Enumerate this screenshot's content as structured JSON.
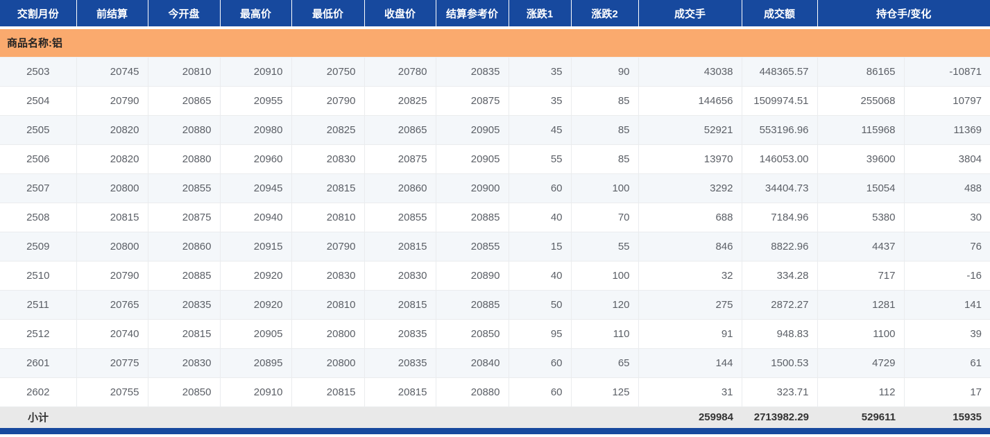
{
  "table": {
    "columns": [
      {
        "key": "delivery-month",
        "label": "交割月份",
        "span": 1
      },
      {
        "key": "prev-settlement",
        "label": "前结算",
        "span": 1
      },
      {
        "key": "open",
        "label": "今开盘",
        "span": 1
      },
      {
        "key": "high",
        "label": "最高价",
        "span": 1
      },
      {
        "key": "low",
        "label": "最低价",
        "span": 1
      },
      {
        "key": "close",
        "label": "收盘价",
        "span": 1
      },
      {
        "key": "settlement-reference",
        "label": "结算参考价",
        "span": 1
      },
      {
        "key": "change1",
        "label": "涨跌1",
        "span": 1
      },
      {
        "key": "change2",
        "label": "涨跌2",
        "span": 1
      },
      {
        "key": "volume",
        "label": "成交手",
        "span": 1
      },
      {
        "key": "turnover",
        "label": "成交额",
        "span": 1
      },
      {
        "key": "open-interest-change",
        "label": "持仓手/变化",
        "span": 2
      }
    ],
    "cell_keys": [
      "delivery-month",
      "prev-settlement",
      "open",
      "high",
      "low",
      "close",
      "settlement-reference",
      "change1",
      "change2",
      "volume",
      "turnover",
      "open-interest",
      "oi-change"
    ],
    "group_label": "商品名称:铝",
    "rows": [
      [
        "2503",
        "20745",
        "20810",
        "20910",
        "20750",
        "20780",
        "20835",
        "35",
        "90",
        "43038",
        "448365.57",
        "86165",
        "-10871"
      ],
      [
        "2504",
        "20790",
        "20865",
        "20955",
        "20790",
        "20825",
        "20875",
        "35",
        "85",
        "144656",
        "1509974.51",
        "255068",
        "10797"
      ],
      [
        "2505",
        "20820",
        "20880",
        "20980",
        "20825",
        "20865",
        "20905",
        "45",
        "85",
        "52921",
        "553196.96",
        "115968",
        "11369"
      ],
      [
        "2506",
        "20820",
        "20880",
        "20960",
        "20830",
        "20875",
        "20905",
        "55",
        "85",
        "13970",
        "146053.00",
        "39600",
        "3804"
      ],
      [
        "2507",
        "20800",
        "20855",
        "20945",
        "20815",
        "20860",
        "20900",
        "60",
        "100",
        "3292",
        "34404.73",
        "15054",
        "488"
      ],
      [
        "2508",
        "20815",
        "20875",
        "20940",
        "20810",
        "20855",
        "20885",
        "40",
        "70",
        "688",
        "7184.96",
        "5380",
        "30"
      ],
      [
        "2509",
        "20800",
        "20860",
        "20915",
        "20790",
        "20815",
        "20855",
        "15",
        "55",
        "846",
        "8822.96",
        "4437",
        "76"
      ],
      [
        "2510",
        "20790",
        "20885",
        "20920",
        "20830",
        "20830",
        "20890",
        "40",
        "100",
        "32",
        "334.28",
        "717",
        "-16"
      ],
      [
        "2511",
        "20765",
        "20835",
        "20920",
        "20810",
        "20815",
        "20885",
        "50",
        "120",
        "275",
        "2872.27",
        "1281",
        "141"
      ],
      [
        "2512",
        "20740",
        "20815",
        "20905",
        "20800",
        "20835",
        "20850",
        "95",
        "110",
        "91",
        "948.83",
        "1100",
        "39"
      ],
      [
        "2601",
        "20775",
        "20830",
        "20895",
        "20800",
        "20835",
        "20840",
        "60",
        "65",
        "144",
        "1500.53",
        "4729",
        "61"
      ],
      [
        "2602",
        "20755",
        "20850",
        "20910",
        "20815",
        "20815",
        "20880",
        "60",
        "125",
        "31",
        "323.71",
        "112",
        "17"
      ]
    ],
    "subtotal_row": [
      "小计",
      "",
      "",
      "",
      "",
      "",
      "",
      "",
      "",
      "259984",
      "2713982.29",
      "529611",
      "15935"
    ]
  },
  "colors": {
    "header_bg": "#17499e",
    "group_bg": "#faaa6e",
    "row_alt_bg": "#f4f7fa",
    "subtotal_bg": "#e9e9e9"
  }
}
